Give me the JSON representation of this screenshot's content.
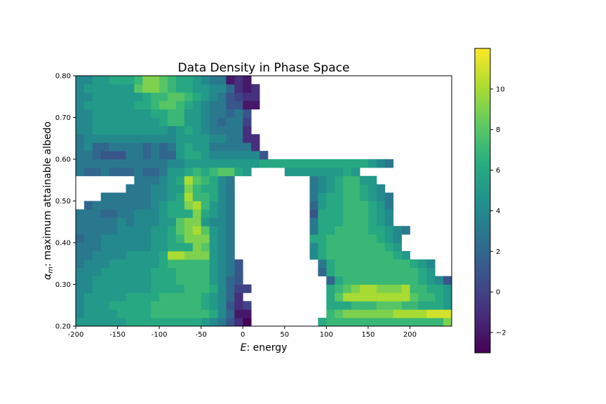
{
  "chart_data": {
    "type": "heatmap",
    "title": "Data Density in Phase Space",
    "xlabel_symbol": "E",
    "xlabel_rest": ": energy",
    "ylabel_symbol": "α",
    "ylabel_sub": "m",
    "ylabel_rest": ": maximum attainable albedo",
    "xlim": [
      -200,
      250
    ],
    "ylim": [
      0.2,
      0.8
    ],
    "x_ticks": [
      -200,
      -150,
      -100,
      -50,
      0,
      50,
      100,
      150,
      200
    ],
    "x_tick_labels": [
      "-200",
      "-150",
      "-100",
      "-50",
      "0",
      "50",
      "100",
      "150",
      "200"
    ],
    "y_ticks": [
      0.2,
      0.3,
      0.4,
      0.5,
      0.6,
      0.7,
      0.8
    ],
    "y_tick_labels": [
      "0.20",
      "0.30",
      "0.40",
      "0.50",
      "0.60",
      "0.70",
      "0.80"
    ],
    "colorbar": {
      "min": -3,
      "max": 12,
      "ticks": [
        -2,
        0,
        2,
        4,
        6,
        8,
        10
      ],
      "tick_labels": [
        "−2",
        "0",
        "2",
        "4",
        "6",
        "8",
        "10"
      ],
      "colormap": "viridis"
    },
    "x_bin_width": 10,
    "y_bin_width": 0.02,
    "x_bin_start": -200,
    "y_bin_start": 0.2,
    "rows": [
      "5 5 5 5 5 5 6 6 6 6 6 6 6 6 6 5 4 3 1 -1 -3 - - - - - - - - 6 7 7 7 7 7 7 7 7 7 7 7 7 7 7 9 9 9 9 9 9 9 9 9 9 9 9 9 9 9 9 9 9 9 9 9",
      "4 5 5 5 5 6 6 6 6 7 7 7 7 7 7 7 6 4 2 -2 -2 - - - - - - - - - 7 8 9 9 9 9 9 9 10 10 10 10 11 11 11 11 11 11 11 11 11 11 11 11 11 10 10 10 10 10 10 10 10 10",
      "4 5 5 5 6 6 6 6 6 7 7 7 7 7 7 6 5 4 1 -1 0 - - - - - - - - - 6 6 6 7 7 7 8 8 8 7 7 6 6 6 5 3 - - - - - - - - - - - - - - - - - -",
      "4 5 5 5 5 5 6 6 6 6 7 7 7 7 7 6 5 4 2 -1 - - - - - - - - - - 6 8 10 10 10 10 10 10 10 10 8 7 7 6 5 - - - - - - - - - - - - - - - - - -",
      "4 4 5 5 5 5 5 5 5 6 6 6 6 7 7 7 6 4 2 0 0 - - - - - - - - - 6 7 8 9 10 10 9 9 9 10 7 7 6 6 5 - - - - - - - - - - - - - - - - - -",
      "4 4 5 5 5 5 5 5 5 6 6 6 7 7 7 7 5 4 2 1 - - - - - - - - - - 2 6 7 7 7 7 7 7 7 7 7 6 5 4 1 - - - - - - - - - - - - - - - - - - -",
      "4 4 4 5 5 5 5 5 5 6 6 6 7 7 7 7 5 4 3 1 - - - - - - - - - 2 6 7 7 7 7 7 7 7 7 7 7 6 5 - - - - - - - - - - - - - - - - - - - -",
      "3 4 4 4 5 5 5 5 5 5 6 7 7 7 7 7 5 4 3 1 - - - - - - - - - 3 6 7 7 7 7 7 7 7 7 7 6 5 4 - - - - - - - - - - - - - - - - - - - -",
      "3 3 4 4 4 4 5 5 5 5 6 10 10 9 9 9 5 4 3 - - - - - - - - - 4 6 7 7 7 7 7 7 7 7 6 5 - - - - - - - - - - - - - - - - - - - - - -",
      "3 3 3 4 4 4 4 4 4 5 5 6 6 6 9 8 5 4 3 - - - - - - - - - 4 6 7 7 7 7 7 7 7 6 5 - - - - - - - - - - - - - - - - - - - - - - -",
      "2 3 3 4 4 4 4 4 4 5 5 6 7 9 9 9 5 4 3 - - - - - - - - - 6 6 7 7 7 7 7 7 6 5 4 - - - - - - - - - - - - - - - - - - - - - - -",
      "3 3 3 3 3 4 4 4 4 5 5 6 8 9 10 8 5 4 3 - - - - - - - - - 3 6 6 7 7 7 7 6 6 5 4 3 - - - - - - - - - - - - - - - - - - - - - - -",
      "3 3 3 3 3 4 3 4 4 4 5 5 8 9 9 5 4 4 3 - - - - - - - - - 3 6 6 6 7 7 7 6 5 4 - - - - - - - - - - - - - - - - - - - - - - - -",
      "3 3 3 2 2 3 3 4 4 4 5 6 6 6 9 6 5 4 3 - - - - - - - - - 1 6 6 6 7 7 7 6 5 4 - - - - - - - - - - - - - - - - - - - - - - - -",
      "- 2 3 3 3 3 3 3 3 4 5 6 6 9 10 7 5 4 3 - - - - - - - - - 2 5 6 6 7 7 7 6 5 3 - - - - - - - - - - - - - - - - - - - - - - - - -",
      "- - - 3 3 3 3 3 3 4 4 5 6 10 7 7 6 4 3 - - - - - - - - - 3 5 6 6 7 7 6 5 4 3 - - - - - - - - - - - - - - - - - - - - - - - - -",
      "- - - - - - 3 3 3 4 4 5 5 9 7 6 6 4 3 - - - - - - - - - 3 4 5 6 7 7 6 5 4 - - - - - - - - - - - - - - - - - - - - - - - - - -",
      "- - - - - - - 3 3 3 4 5 6 10 8 7 6 4 3 - - - - - - - - - 3 4 5 6 7 7 5 5 - - - - - - - - - - - - - - - - - - - - - - - - - - -",
      "3 2 2 3 2 2 2 3 2 2 3 5 5 6 7 6 7 8 8 6 5 - - - - 5 5 5 5 5 5 5 6 5 - - - - - - - - - - - - - - - - - - - - - - - - - - - - - -",
      "3 3 3 3 3 3 3 3 3 3 3 4 4 5 5 5 5 5 5 5 5 5 6 6 6 6 6 6 6 6 6 6 6 6 6 5 4 3 - - - - - - - - - - - - - - - - - - - - - - - - - -",
      "3 3 2 1 1 1 3 3 2 3 2 2 5 6 6 5 4 4 4 4 4 4 1 - - - - - - - - - - - - - - - - - - - - - - - - - - - - - - - - - - - - - - - - - - - - - -",
      "3 4 2 2 3 3 3 3 2 3 2 3 5 6 5 5 3 3 3 3 3 -1 - - - - - - - - - - - - - - - - - - - - - - - - - - - - - - - - - - - - - - - - - - - - - - -",
      "3 4 4 4 4 4 4 4 4 4 4 4 5 5 5 5 4 4 3 3 -1 -1 - - - - - - - - - - - - - - - - - - - - - - - - - - - - - - - - - - - - - - - - - - - - - - -",
      "4 4 5 5 5 5 5 5 5 5 5 4 5 6 5 4 3 3 3 3 -1 - - - - - - - - - - - - - - - - - - - - - - - - - - - - - - - - - - - - - - - - - - - - - - - - -",
      "4 4 5 5 5 5 5 5 5 5 6 7 7 5 5 4 3 2 3 3 0 - - - - - - - - - - - - - - - - - - - - - - - - - - - - - - - - - - - - - - - - - - - - - - - - -",
      "4 4 5 5 5 5 5 5 5 6 6 7 7 5 5 4 3 3 2 3 1 - - - - - - - - - - - - - - - - - - - - - - - - - - - - - - - - - - - - - - - - - - - - - - - - -",
      "4 5 5 5 5 5 5 6 6 7 8 8 7 6 5 4 3 3 1 1 -2 -2 - - - - - - - - - - - - - - - - - - - - - - - - - - - - - - - - - - - - - - - - - - - - - - - -",
      "4 4 5 5 5 5 5 5 6 7 7 8 8 7 6 5 4 3 1 0 -1 -1 - - - - - - - - - - - - - - - - - - - - - - - - - - - - - - - - - - - - - - - - - - - - - - - -",
      "4 5 5 5 5 5 5 8 9 9 8 7 6 6 5 5 4 4 2 -1 -2 -1 - - - - - - - - - - - - - - - - - - - - - - - - - - - - - - - - - - - - - - - - - - - - - - - -",
      "4 4 5 5 6 6 6 7 9 9 8 7 6 6 5 4 3 3 -2 -1 -2 - - - - - - - - - - - - - - - - - - - - - - - - - - - - - - - - - - - - - - - - - - - - - - - - -"
    ]
  }
}
